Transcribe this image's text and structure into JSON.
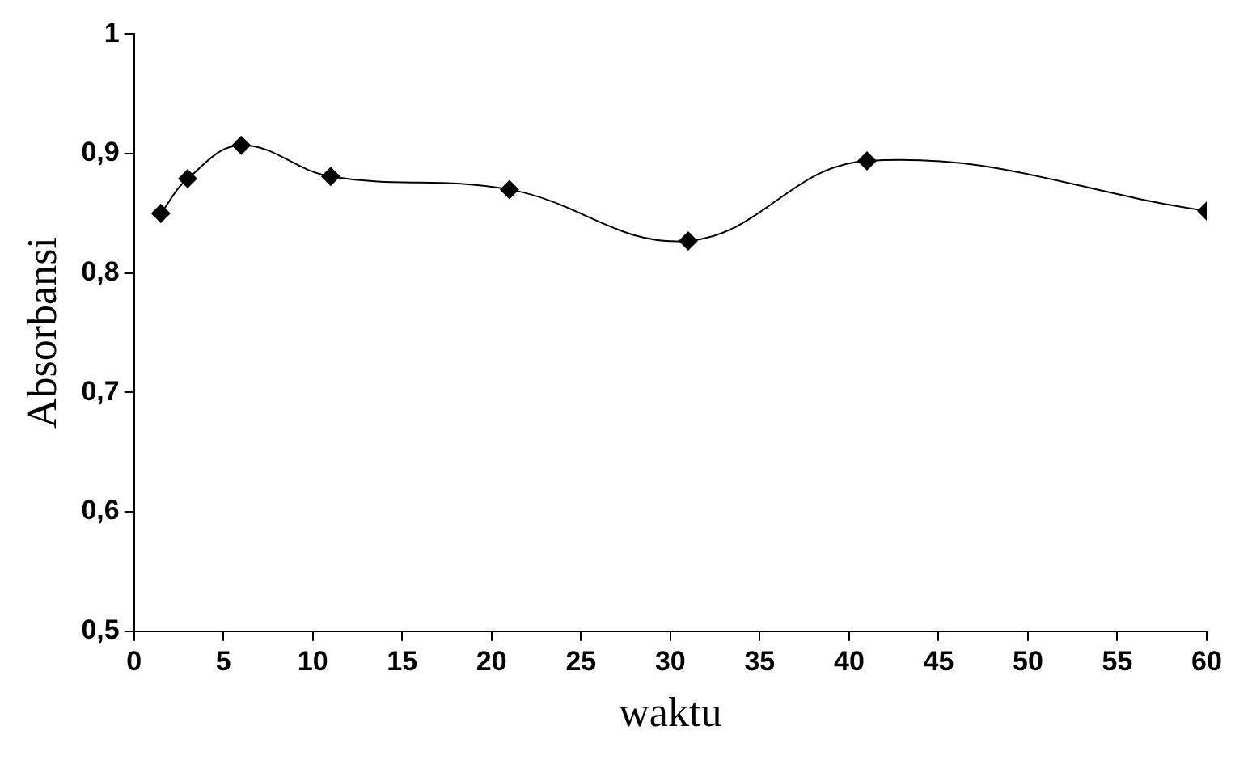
{
  "chart_data": {
    "type": "line",
    "xlabel": "waktu",
    "ylabel": "Absorbansi",
    "x": [
      1.5,
      3,
      6,
      11,
      21,
      31,
      41,
      60
    ],
    "series": [
      {
        "color": "#000000",
        "values": [
          0.85,
          0.879,
          0.907,
          0.881,
          0.87,
          0.827,
          0.894,
          0.852
        ]
      }
    ],
    "xlim": [
      0,
      60
    ],
    "xticks": [
      0,
      5,
      10,
      15,
      20,
      25,
      30,
      35,
      40,
      45,
      50,
      55,
      60
    ],
    "ylim": [
      0.5,
      1
    ],
    "yticks": [
      {
        "value": 0.5,
        "label": "0,5"
      },
      {
        "value": 0.6,
        "label": "0,6"
      },
      {
        "value": 0.7,
        "label": "0,7"
      },
      {
        "value": 0.8,
        "label": "0,8"
      },
      {
        "value": 0.9,
        "label": "0,9"
      },
      {
        "value": 1,
        "label": "1"
      }
    ],
    "marker": "diamond",
    "line_style": "solid",
    "legend": false,
    "grid": false
  }
}
